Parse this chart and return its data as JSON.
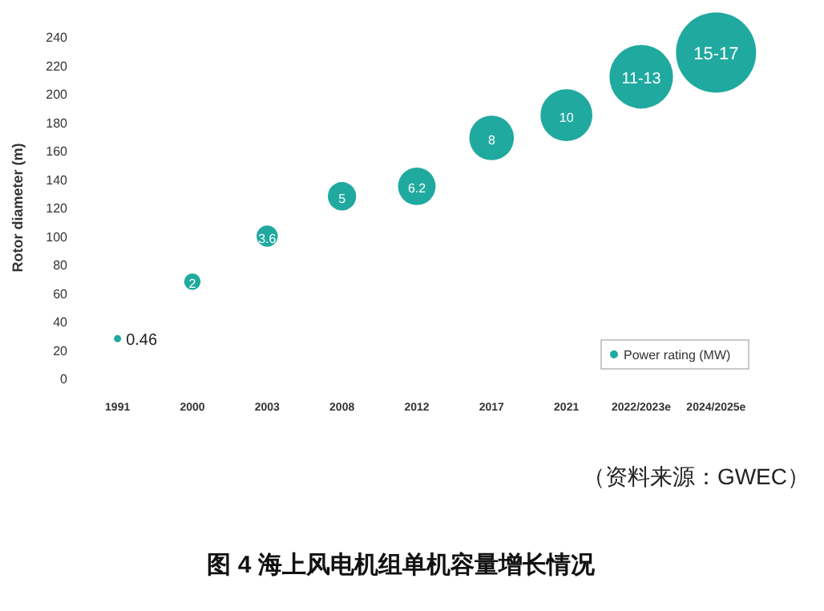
{
  "chart_data": {
    "type": "bubble",
    "title": "图 4   海上风电机组单机容量增长情况",
    "ylabel": "Rotor diameter (m)",
    "categories": [
      "1991",
      "2000",
      "2003",
      "2008",
      "2012",
      "2017",
      "2021",
      "2022/2023e",
      "2024/2025e"
    ],
    "ylim": [
      0,
      240
    ],
    "yticks": [
      0,
      20,
      40,
      60,
      80,
      100,
      120,
      140,
      160,
      180,
      200,
      220,
      240
    ],
    "legend": "bottom right",
    "series": [
      {
        "name": "Power rating (MW)",
        "color": "#20a99f",
        "values": [
          28,
          68,
          100,
          128,
          135,
          169,
          185,
          212,
          229
        ],
        "sizes": [
          0.008,
          0.042,
          0.07,
          0.125,
          0.22,
          0.31,
          0.42,
          0.63,
          1
        ]
      }
    ],
    "annotations": [
      {
        "text": "0.46",
        "x": "1991",
        "y": 28
      },
      {
        "text": "2",
        "x": "2000",
        "y": 68
      },
      {
        "text": "3.6",
        "x": "2003",
        "y": 100
      },
      {
        "text": "5",
        "x": "2008",
        "y": 128
      },
      {
        "text": "6.2",
        "x": "2012",
        "y": 135
      },
      {
        "text": "8",
        "x": "2017",
        "y": 169
      },
      {
        "text": "10",
        "x": "2021",
        "y": 185
      },
      {
        "text": "11-13",
        "x": "2022/2023e",
        "y": 212
      },
      {
        "text": "15-17",
        "x": "2024/2025e",
        "y": 229
      },
      "（资料来源：GWEC）"
    ]
  }
}
